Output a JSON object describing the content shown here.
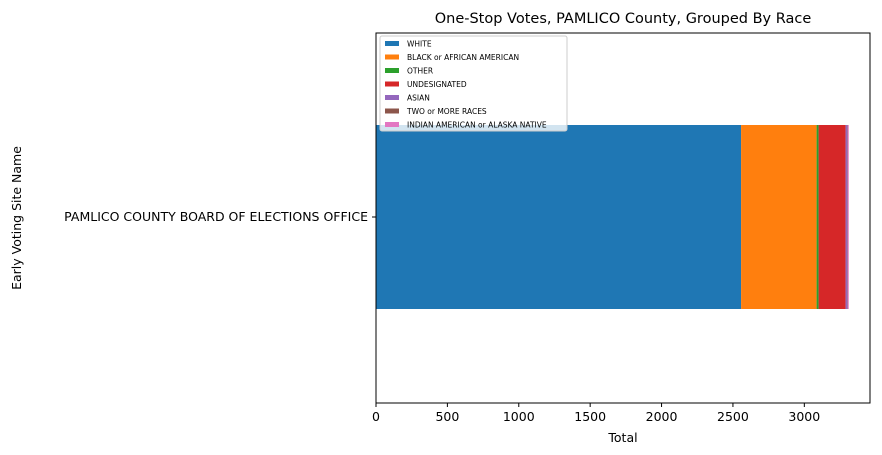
{
  "chart_data": {
    "type": "bar",
    "orientation": "horizontal",
    "stacked": true,
    "title": "One-Stop Votes, PAMLICO County, Grouped By Race",
    "xlabel": "Total",
    "ylabel": "Early Voting Site Name",
    "categories": [
      "PAMLICO COUNTY BOARD OF ELECTIONS OFFICE"
    ],
    "xlim": [
      0,
      3460
    ],
    "xticks": [
      0,
      500,
      1000,
      1500,
      2000,
      2500,
      3000
    ],
    "grid": false,
    "legend_position": "top-left",
    "series": [
      {
        "name": "WHITE",
        "values": [
          2557
        ],
        "color": "#1f77b4"
      },
      {
        "name": "BLACK or AFRICAN AMERICAN",
        "values": [
          529
        ],
        "color": "#ff7f0e"
      },
      {
        "name": "OTHER",
        "values": [
          14
        ],
        "color": "#2ca02c"
      },
      {
        "name": "UNDESIGNATED",
        "values": [
          189
        ],
        "color": "#d62728"
      },
      {
        "name": "ASIAN",
        "values": [
          13
        ],
        "color": "#9467bd"
      },
      {
        "name": "TWO or MORE RACES",
        "values": [
          3
        ],
        "color": "#8c564b"
      },
      {
        "name": "INDIAN AMERICAN or ALASKA NATIVE",
        "values": [
          6
        ],
        "color": "#e377c2"
      }
    ]
  }
}
